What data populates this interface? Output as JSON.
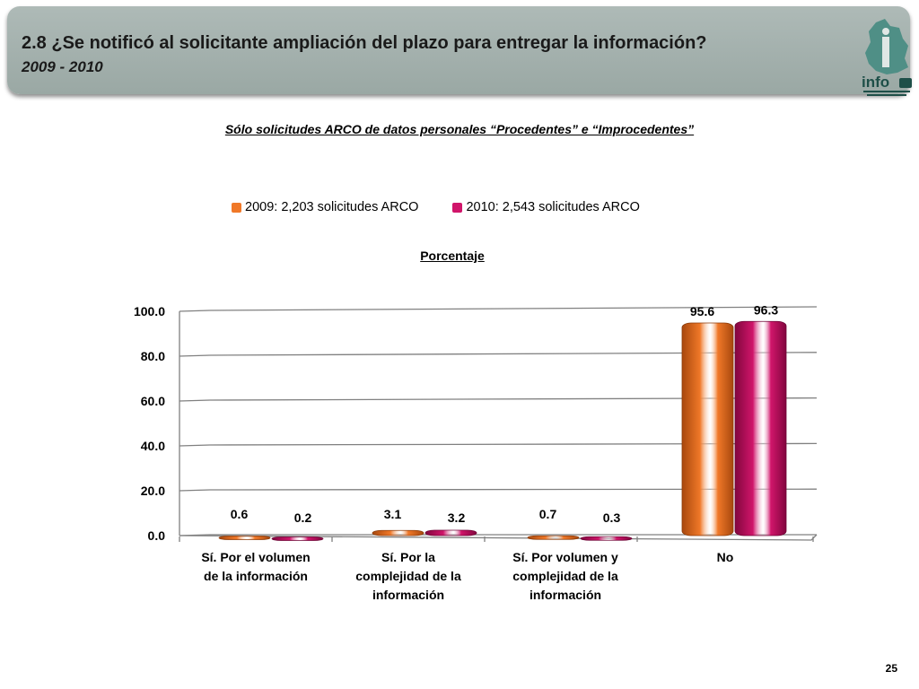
{
  "header": {
    "title": "2.8 ¿Se notificó al solicitante ampliación del plazo para entregar la información?",
    "years": "2009 - 2010"
  },
  "logo": {
    "icon": "infodf-map-logo",
    "text": "info"
  },
  "subtitle": "Sólo solicitudes ARCO de datos personales “Procedentes” e “Improcedentes”",
  "page_number": "25",
  "colors": {
    "series_2009": "#f07828",
    "series_2010": "#d0156a",
    "header_bg": "#a6b3b0",
    "logo": "#4f8f86"
  },
  "chart_data": {
    "type": "bar",
    "title": "",
    "ylabel": "Porcentaje",
    "xlabel": "",
    "ylim": [
      0,
      100
    ],
    "yticks": [
      "0.0",
      "20.0",
      "40.0",
      "60.0",
      "80.0",
      "100.0"
    ],
    "categories": [
      [
        "Sí. Por el volumen",
        "de la información"
      ],
      [
        "Sí. Por la",
        "complejidad de la",
        "información"
      ],
      [
        "Sí. Por volumen y",
        "complejidad de la",
        "información"
      ],
      [
        "No"
      ]
    ],
    "series": [
      {
        "name": "2009: 2,203 solicitudes ARCO",
        "values": [
          0.6,
          3.1,
          0.7,
          95.6
        ],
        "labels": [
          "0.6",
          "3.1",
          "0.7",
          "95.6"
        ]
      },
      {
        "name": "2010: 2,543 solicitudes ARCO",
        "values": [
          0.2,
          3.2,
          0.3,
          96.3
        ],
        "labels": [
          "0.2",
          "3.2",
          "0.3",
          "96.3"
        ]
      }
    ],
    "grid": true,
    "legend_position": "top"
  }
}
